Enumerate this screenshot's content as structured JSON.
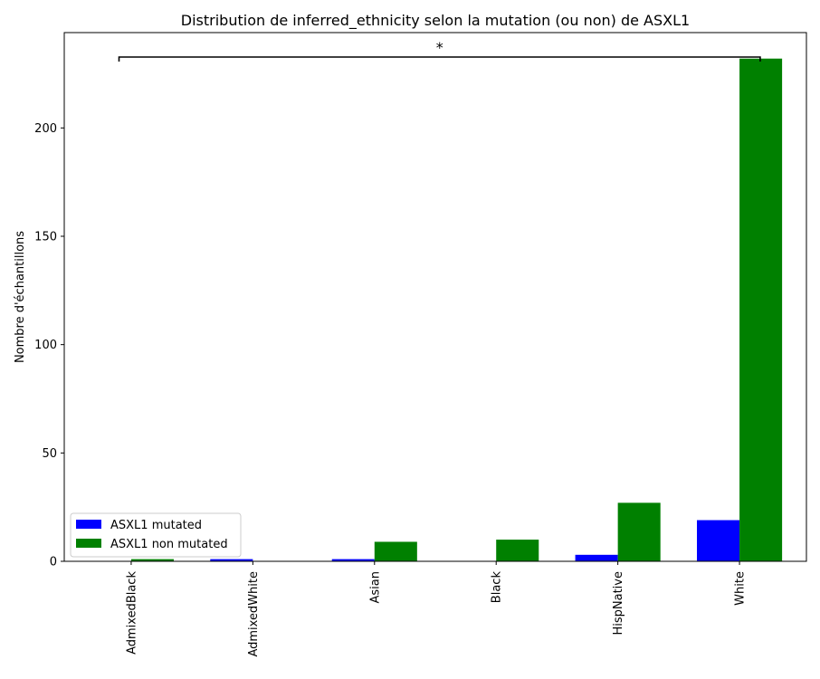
{
  "chart_data": {
    "type": "bar",
    "title": "Distribution de inferred_ethnicity selon la mutation (ou non) de ASXL1",
    "xlabel": "",
    "ylabel": "Nombre d'échantillons",
    "ylim": [
      0,
      244
    ],
    "yticks": [
      0,
      50,
      100,
      150,
      200
    ],
    "categories": [
      "AdmixedBlack",
      "AdmixedWhite",
      "Asian",
      "Black",
      "HispNative",
      "White"
    ],
    "series": [
      {
        "name": "ASXL1 mutated",
        "color": "#0000ff",
        "values": [
          0,
          1,
          1,
          0,
          3,
          19
        ]
      },
      {
        "name": "ASXL1 non mutated",
        "color": "#008000",
        "values": [
          1,
          0,
          9,
          10,
          27,
          232
        ]
      }
    ],
    "legend_position": "lower-left",
    "grid": false,
    "annotation": {
      "text": "*",
      "from_category": "AdmixedBlack",
      "to_category": "White"
    }
  }
}
